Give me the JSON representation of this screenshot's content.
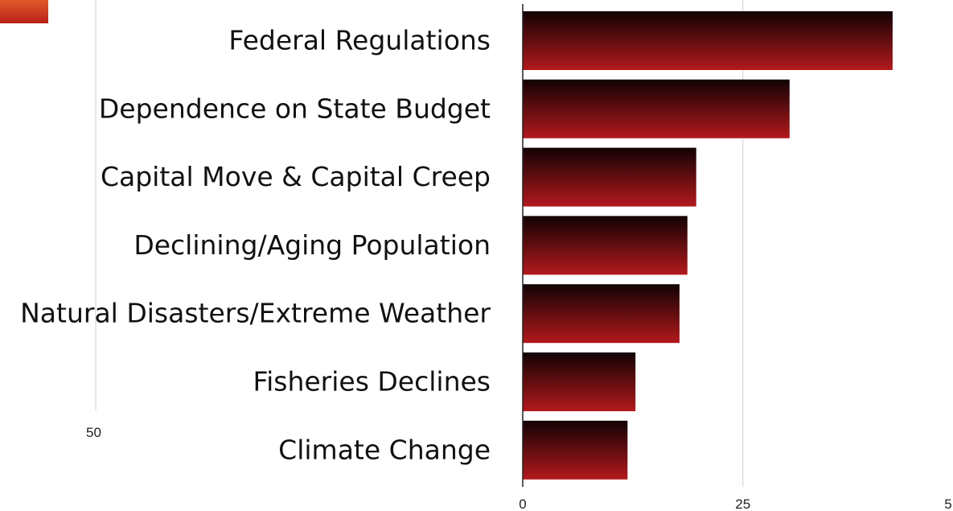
{
  "chart_data": {
    "type": "bar",
    "orientation": "horizontal",
    "title": "",
    "xlabel": "",
    "ylabel": "",
    "categories": [
      "Federal Regulations",
      "Dependence on State Budget",
      "Capital Move & Capital Creep",
      "Declining/Aging Population",
      "Natural Disasters/Extreme Weather",
      "Fisheries Declines",
      "Climate Change"
    ],
    "values": [
      42,
      30.3,
      19.7,
      18.7,
      17.8,
      12.8,
      11.9
    ],
    "xlim": [
      0,
      50
    ],
    "x_ticks": [
      "0",
      "25",
      "5"
    ],
    "stray_tick_label": "50",
    "grid": true,
    "legend": "none",
    "colors": {
      "bar_top": "#120204",
      "bar_bottom": "#b3191c",
      "swatch_top": "#e05a2a",
      "swatch_bottom": "#b8201a",
      "grid": "#d0d0d0",
      "axis": "#222222"
    }
  }
}
